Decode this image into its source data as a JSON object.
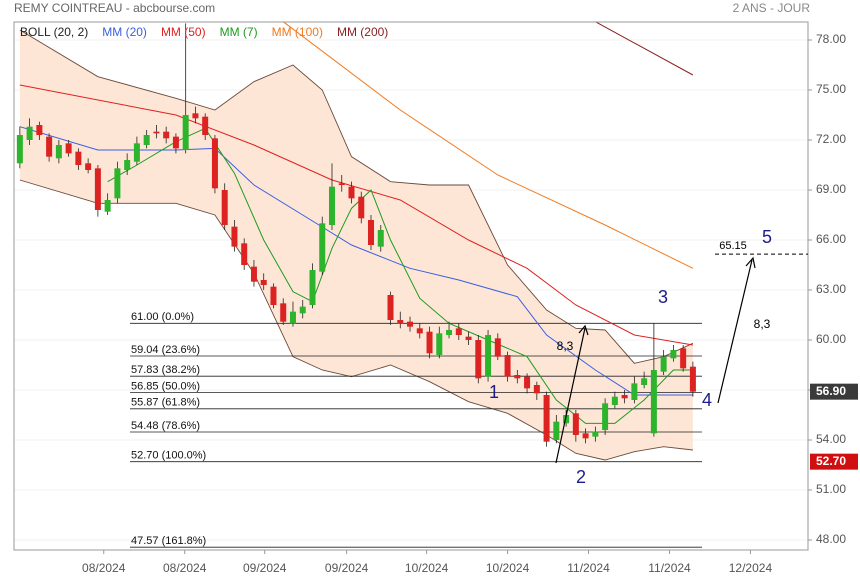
{
  "header": {
    "title": "REMY COINTREAU - abcbourse.com",
    "period": "2 ANS - JOUR"
  },
  "chart_data": {
    "type": "candlestick",
    "xlim": [
      -0.6,
      80.8
    ],
    "ylim": [
      47.4,
      79.08
    ],
    "xticks": [
      {
        "value": 8.6,
        "label": "08/2024"
      },
      {
        "value": 16.9,
        "label": "08/2024"
      },
      {
        "value": 25.1,
        "label": "09/2024"
      },
      {
        "value": 33.5,
        "label": "09/2024"
      },
      {
        "value": 41.7,
        "label": "10/2024"
      },
      {
        "value": 50.0,
        "label": "10/2024"
      },
      {
        "value": 58.3,
        "label": "11/2024"
      },
      {
        "value": 66.6,
        "label": "11/2024"
      },
      {
        "value": 74.9,
        "label": "12/2024"
      }
    ],
    "yticks": [
      {
        "value": 48,
        "label": "48.00"
      },
      {
        "value": 51,
        "label": "51.00"
      },
      {
        "value": 54,
        "label": "54.00"
      },
      {
        "value": 57,
        "label": "57.00"
      },
      {
        "value": 60,
        "label": "60.00"
      },
      {
        "value": 63,
        "label": "63.00"
      },
      {
        "value": 66,
        "label": "66.00"
      },
      {
        "value": 69,
        "label": "69.00"
      },
      {
        "value": 72,
        "label": "72.00"
      },
      {
        "value": 75,
        "label": "75.00"
      },
      {
        "value": 78,
        "label": "78.00"
      }
    ],
    "grid": true,
    "up_color": "#2db42d",
    "down_color": "#dd2222",
    "open": [
      70.6,
      72.0,
      72.9,
      72.2,
      70.9,
      71.8,
      71.3,
      70.6,
      70.3,
      67.7,
      68.5,
      70.2,
      70.7,
      71.7,
      72.5,
      72.5,
      72.2,
      71.4,
      73.6,
      73.4,
      72.1,
      69.0,
      66.8,
      65.8,
      64.4,
      63.6,
      63.2,
      62.2,
      61.0,
      61.6,
      62.1,
      64.1,
      66.9,
      69.4,
      69.2,
      68.6,
      67.2,
      65.6,
      62.7,
      61.2,
      61.1,
      60.7,
      60.5,
      59.1,
      60.3,
      60.7,
      60.2,
      60.0,
      57.8,
      60.1,
      59.1,
      57.9,
      57.8,
      57.3,
      56.7,
      54.0,
      55.0,
      55.6,
      54.4,
      54.2,
      54.6,
      56.1,
      56.7,
      56.4,
      57.3,
      54.4,
      58.1,
      58.9,
      59.5,
      58.4
    ],
    "high": [
      72.8,
      73.3,
      73.1,
      72.4,
      72.0,
      72.0,
      71.5,
      70.9,
      70.5,
      68.8,
      70.7,
      71.2,
      72.2,
      72.6,
      72.9,
      72.8,
      72.4,
      79.0,
      74.0,
      73.6,
      72.3,
      69.4,
      67.2,
      66.1,
      64.8,
      64.0,
      63.4,
      62.5,
      62.3,
      62.4,
      64.6,
      67.4,
      70.6,
      69.9,
      69.5,
      68.9,
      67.5,
      66.9,
      62.9,
      61.7,
      61.4,
      61.0,
      60.8,
      60.8,
      61.1,
      61.0,
      60.5,
      60.3,
      60.6,
      60.4,
      59.3,
      58.2,
      58.0,
      57.5,
      56.9,
      55.5,
      55.8,
      55.8,
      54.7,
      54.8,
      56.5,
      56.9,
      57.0,
      57.8,
      58.1,
      61.0,
      59.4,
      59.7,
      59.7,
      58.7
    ],
    "low": [
      70.3,
      71.7,
      72.0,
      70.7,
      70.6,
      71.0,
      70.2,
      70.0,
      67.4,
      67.5,
      68.2,
      69.9,
      70.5,
      71.5,
      72.1,
      71.8,
      71.2,
      71.2,
      73.0,
      72.0,
      68.8,
      66.6,
      65.3,
      64.2,
      63.2,
      63.0,
      61.9,
      60.9,
      60.8,
      61.3,
      61.9,
      63.9,
      66.6,
      68.9,
      68.2,
      67.0,
      65.4,
      65.3,
      60.9,
      60.7,
      60.5,
      60.1,
      58.9,
      58.9,
      60.1,
      60.0,
      59.7,
      57.4,
      57.5,
      58.8,
      57.5,
      57.4,
      56.8,
      56.4,
      53.6,
      53.8,
      54.8,
      53.9,
      53.8,
      53.9,
      54.3,
      55.9,
      56.2,
      56.2,
      57.1,
      54.2,
      57.9,
      58.7,
      58.1,
      56.6
    ],
    "close": [
      72.3,
      72.8,
      72.3,
      71.0,
      71.7,
      71.2,
      70.5,
      70.2,
      67.8,
      68.4,
      70.3,
      70.8,
      71.8,
      72.3,
      72.4,
      72.1,
      71.5,
      73.5,
      73.3,
      72.3,
      69.1,
      66.9,
      65.6,
      64.5,
      63.5,
      63.3,
      62.1,
      61.1,
      61.7,
      62.0,
      64.2,
      67.0,
      69.2,
      69.3,
      68.5,
      67.3,
      65.7,
      66.6,
      61.2,
      61.0,
      60.8,
      60.4,
      59.2,
      60.4,
      60.6,
      60.3,
      60.0,
      57.7,
      60.3,
      59.0,
      57.8,
      57.7,
      57.1,
      56.8,
      53.9,
      55.1,
      55.5,
      54.3,
      54.1,
      54.5,
      56.2,
      56.6,
      56.5,
      57.4,
      57.7,
      58.2,
      59.0,
      59.4,
      58.3,
      56.9
    ],
    "bollinger": {
      "name": "BOLL (20, 2)",
      "color": "#6b4a3a",
      "fill": "#fde6d6",
      "x": [
        0,
        8,
        16,
        20,
        24,
        28,
        31,
        34,
        38,
        42,
        46,
        50,
        54,
        57,
        60,
        63,
        66,
        69
      ],
      "upper": [
        78.6,
        75.8,
        74.5,
        73.8,
        75.5,
        76.5,
        75.0,
        71.0,
        69.5,
        69.3,
        69.3,
        64.5,
        61.8,
        60.7,
        60.6,
        58.6,
        59.0,
        59.8
      ],
      "lower": [
        69.6,
        68.2,
        68.2,
        67.5,
        64.0,
        59.0,
        58.2,
        57.8,
        58.5,
        57.5,
        56.3,
        55.6,
        54.3,
        53.2,
        52.8,
        53.3,
        53.6,
        53.4
      ]
    },
    "series": [
      {
        "name": "MM (20)",
        "color": "#3a5fe0",
        "x": [
          0,
          8,
          16,
          20,
          24,
          29,
          34,
          40,
          45,
          51,
          54,
          59,
          63,
          69
        ],
        "values": [
          72.8,
          71.4,
          71.4,
          71.5,
          69.3,
          67.5,
          65.7,
          64.3,
          63.6,
          62.6,
          60.3,
          58.2,
          56.7,
          56.7
        ]
      },
      {
        "name": "MM (50)",
        "color": "#e02020",
        "x": [
          0,
          16,
          24,
          32,
          39,
          46,
          52,
          57,
          63,
          69
        ],
        "values": [
          75.3,
          73.5,
          71.7,
          69.6,
          68.4,
          66.0,
          64.3,
          62.1,
          60.3,
          59.7
        ]
      },
      {
        "name": "MM (7)",
        "color": "#1e9a1e",
        "x": [
          9,
          12,
          16,
          19,
          22,
          25,
          28,
          30,
          32,
          34,
          36,
          38,
          41,
          44,
          48,
          52,
          55,
          58,
          61,
          64,
          67,
          69
        ],
        "values": [
          69.5,
          70.5,
          71.9,
          72.7,
          70.0,
          66.0,
          62.9,
          62.3,
          65.5,
          67.9,
          69.0,
          66.0,
          62.5,
          61.0,
          60.0,
          59.0,
          56.4,
          55.0,
          55.0,
          56.4,
          58.2,
          58.2
        ]
      },
      {
        "name": "MM (100)",
        "color": "#f07a20",
        "x": [
          27,
          39,
          49,
          60,
          69
        ],
        "values": [
          79.1,
          73.8,
          69.9,
          66.9,
          64.3
        ]
      },
      {
        "name": "MM (200)",
        "color": "#8b2020",
        "x": [
          59,
          69
        ],
        "values": [
          79.1,
          75.9
        ]
      }
    ],
    "levels": [
      {
        "value": 61.0,
        "label": "61.00 (0.0%)"
      },
      {
        "value": 59.04,
        "label": "59.04 (23.6%)"
      },
      {
        "value": 57.83,
        "label": "57.83 (38.2%)"
      },
      {
        "value": 56.85,
        "label": "56.85 (50.0%)"
      },
      {
        "value": 55.87,
        "label": "55.87 (61.8%)"
      },
      {
        "value": 54.48,
        "label": "54.48 (78.6%)"
      },
      {
        "value": 52.7,
        "label": "52.70 (100.0%)"
      },
      {
        "value": 47.57,
        "label": "47.57 (161.8%)"
      }
    ],
    "price_tags": [
      {
        "value": 56.9,
        "label": "56.90",
        "color": "#3a3a3a"
      },
      {
        "value": 52.7,
        "label": "52.70",
        "color": "#d01010"
      }
    ],
    "target": 65.15,
    "waves": [
      "1",
      "2",
      "3",
      "4",
      "5"
    ],
    "measures": [
      "8,3",
      "8,3"
    ]
  }
}
